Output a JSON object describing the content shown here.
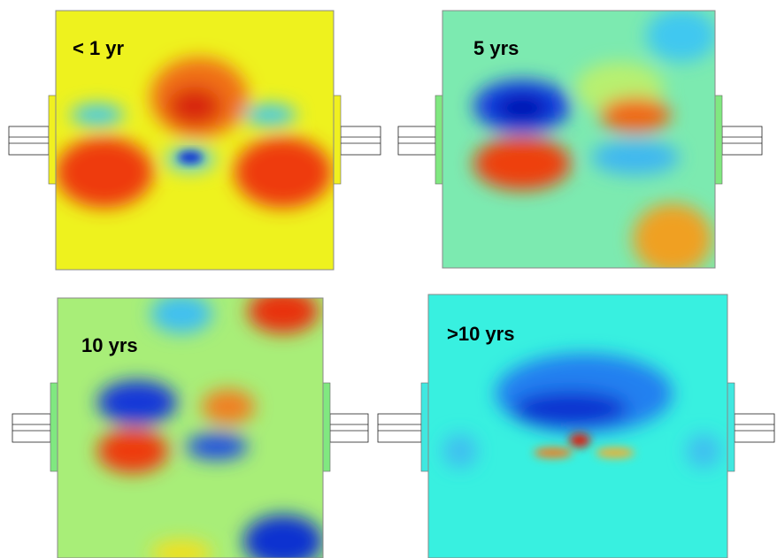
{
  "panels": [
    {
      "label": "< 1 yr"
    },
    {
      "label": "5 yrs"
    },
    {
      "label": "10 yrs"
    },
    {
      "label": ">10 yrs"
    }
  ]
}
